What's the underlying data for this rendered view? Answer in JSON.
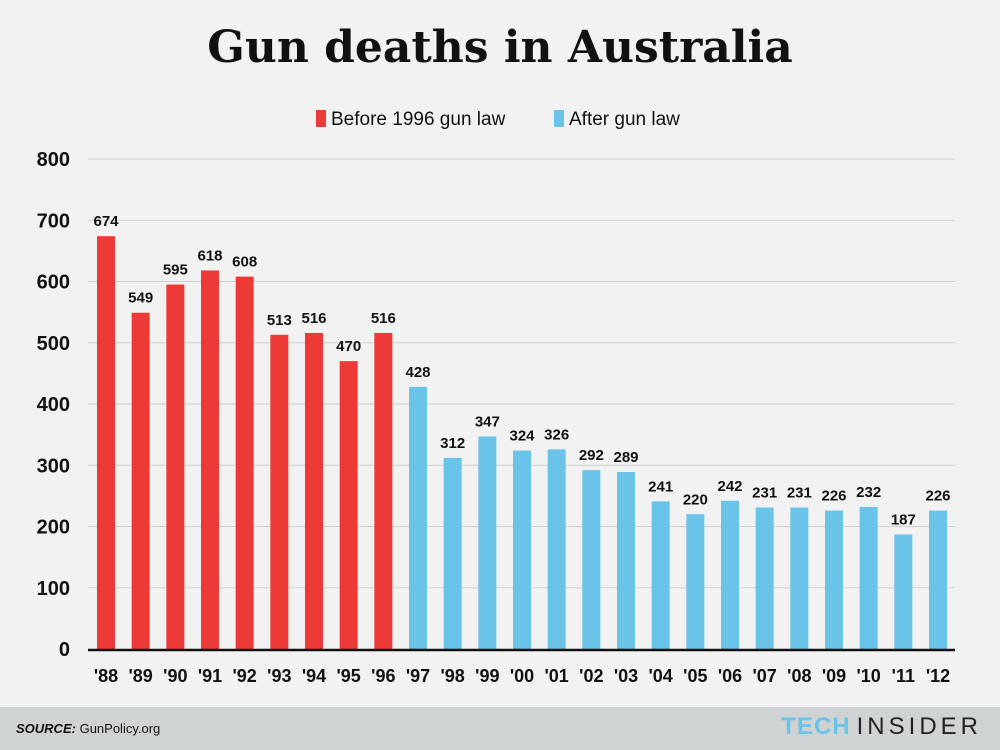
{
  "title": "Gun deaths in Australia",
  "chart_data": {
    "type": "bar",
    "title": "Gun deaths in Australia",
    "categories": [
      "'88",
      "'89",
      "'90",
      "'91",
      "'92",
      "'93",
      "'94",
      "'95",
      "'96",
      "'97",
      "'98",
      "'99",
      "'00",
      "'01",
      "'02",
      "'03",
      "'04",
      "'05",
      "'06",
      "'07",
      "'08",
      "'09",
      "'10",
      "'11",
      "'12"
    ],
    "values": [
      674,
      549,
      595,
      618,
      608,
      513,
      516,
      470,
      516,
      428,
      312,
      347,
      324,
      326,
      292,
      289,
      241,
      220,
      242,
      231,
      231,
      226,
      232,
      187,
      226
    ],
    "series": [
      {
        "name": "Before 1996 gun law",
        "range": [
          "'88",
          "'96"
        ],
        "color": "#ee3a36"
      },
      {
        "name": "After gun law",
        "range": [
          "'97",
          "'12"
        ],
        "color": "#6ac3e8"
      }
    ],
    "ylim": [
      0,
      800
    ],
    "yticks": [
      0,
      100,
      200,
      300,
      400,
      500,
      600,
      700,
      800
    ],
    "grid": true,
    "legend": "top-center",
    "xlabel": "",
    "ylabel": ""
  },
  "footer": {
    "source_label": "SOURCE:",
    "source": "GunPolicy.org",
    "logo_a": "TECH",
    "logo_b": "INSIDER"
  }
}
